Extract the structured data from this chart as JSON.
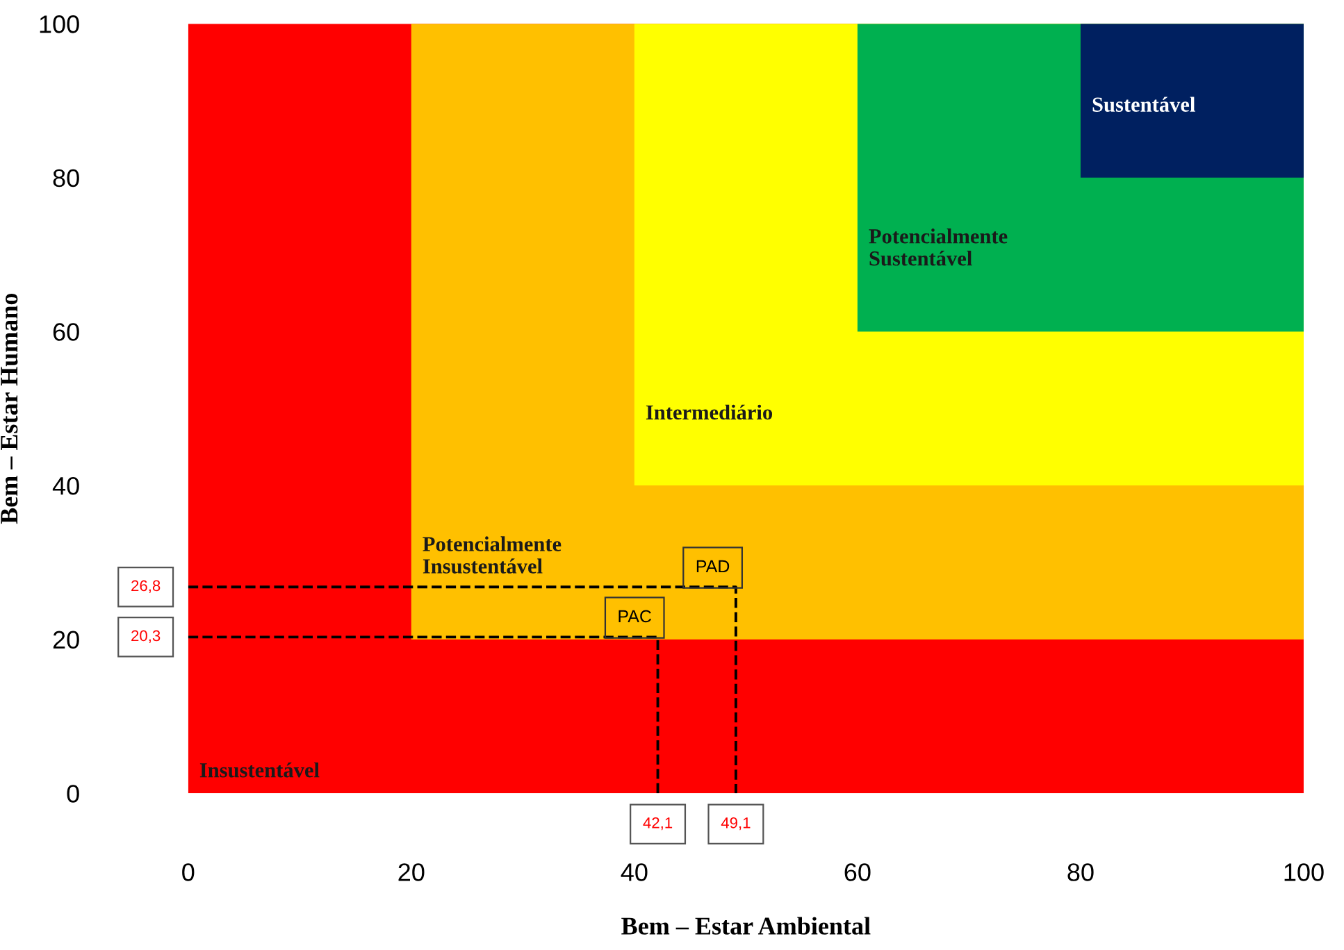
{
  "chart_data": {
    "type": "line",
    "xlabel": "Bem – Estar Ambiental",
    "ylabel": "Bem – Estar Humano",
    "xlim": [
      0,
      100
    ],
    "ylim": [
      0,
      100
    ],
    "xticks": [
      0,
      20,
      40,
      60,
      80,
      100
    ],
    "yticks": [
      0,
      20,
      40,
      60,
      80,
      100
    ],
    "grid": false,
    "legend": false,
    "marker": "none",
    "line_style": "dashed",
    "series": [
      {
        "name": "PAC",
        "color": "#000000",
        "x": [
          0,
          42.1,
          42.1
        ],
        "values": [
          20.3,
          20.3,
          0
        ]
      },
      {
        "name": "PAD",
        "color": "#000000",
        "x": [
          0,
          49.1,
          49.1
        ],
        "values": [
          26.8,
          26.8,
          0
        ]
      }
    ],
    "bands": [
      {
        "axis": "x",
        "from": 0,
        "to": 100,
        "color": "#ff0000",
        "label": "Insustentável"
      },
      {
        "axis": "x",
        "from": 20,
        "to": 100,
        "color": "#ffc000",
        "label": "Potencialmente\nInsustentável"
      },
      {
        "axis": "x",
        "from": 40,
        "to": 100,
        "color": "#ffff00",
        "label": "Intermediário"
      },
      {
        "axis": "x",
        "from": 60,
        "to": 100,
        "color": "#00b050",
        "label": "Potencialmente\nSustentável"
      },
      {
        "axis": "x",
        "from": 80,
        "to": 100,
        "color": "#002060",
        "label": "Sustentável"
      }
    ],
    "annotations": [
      {
        "text": "42,1",
        "x": 42.1,
        "y": 0
      },
      {
        "text": "49,1",
        "x": 49.1,
        "y": 0
      },
      {
        "text": "20,3",
        "x": 0,
        "y": 20.3
      },
      {
        "text": "26,8",
        "x": 0,
        "y": 26.8
      }
    ]
  }
}
